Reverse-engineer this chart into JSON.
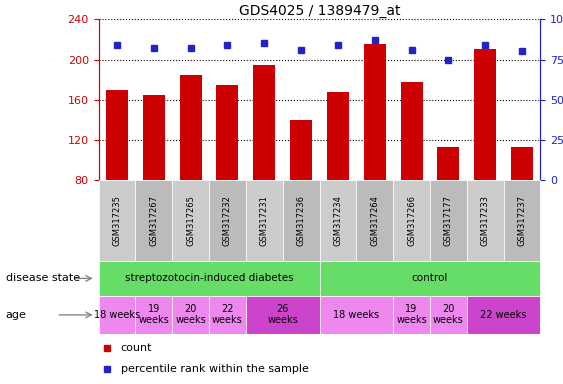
{
  "title": "GDS4025 / 1389479_at",
  "samples": [
    "GSM317235",
    "GSM317267",
    "GSM317265",
    "GSM317232",
    "GSM317231",
    "GSM317236",
    "GSM317234",
    "GSM317264",
    "GSM317266",
    "GSM317177",
    "GSM317233",
    "GSM317237"
  ],
  "count_values": [
    170,
    165,
    185,
    175,
    195,
    140,
    168,
    215,
    178,
    113,
    210,
    113
  ],
  "percentile_values": [
    84,
    82,
    82,
    84,
    85,
    81,
    84,
    87,
    81,
    75,
    84,
    80
  ],
  "ylim_left": [
    80,
    240
  ],
  "ylim_right": [
    0,
    100
  ],
  "yticks_left": [
    80,
    120,
    160,
    200,
    240
  ],
  "yticks_right": [
    0,
    25,
    50,
    75,
    100
  ],
  "bar_color": "#cc0000",
  "dot_color": "#2222cc",
  "bg_color": "#ffffff",
  "label_color_left": "#cc0000",
  "label_color_right": "#2222cc",
  "tick_label_bg": "#cccccc",
  "ds_color_diabetes": "#66dd66",
  "ds_color_control": "#55cc55",
  "age_color_light": "#ee88ee",
  "age_color_dark": "#cc44cc",
  "ds_groups": [
    {
      "label": "streptozotocin-induced diabetes",
      "start": 0,
      "end": 6
    },
    {
      "label": "control",
      "start": 6,
      "end": 12
    }
  ],
  "age_groups": [
    {
      "label": "18 weeks",
      "start": 0,
      "end": 1,
      "dark": false
    },
    {
      "label": "19\nweeks",
      "start": 1,
      "end": 2,
      "dark": false
    },
    {
      "label": "20\nweeks",
      "start": 2,
      "end": 3,
      "dark": false
    },
    {
      "label": "22\nweeks",
      "start": 3,
      "end": 4,
      "dark": false
    },
    {
      "label": "26\nweeks",
      "start": 4,
      "end": 6,
      "dark": true
    },
    {
      "label": "18 weeks",
      "start": 6,
      "end": 8,
      "dark": false
    },
    {
      "label": "19\nweeks",
      "start": 8,
      "end": 9,
      "dark": false
    },
    {
      "label": "20\nweeks",
      "start": 9,
      "end": 10,
      "dark": false
    },
    {
      "label": "22 weeks",
      "start": 10,
      "end": 12,
      "dark": true
    }
  ]
}
